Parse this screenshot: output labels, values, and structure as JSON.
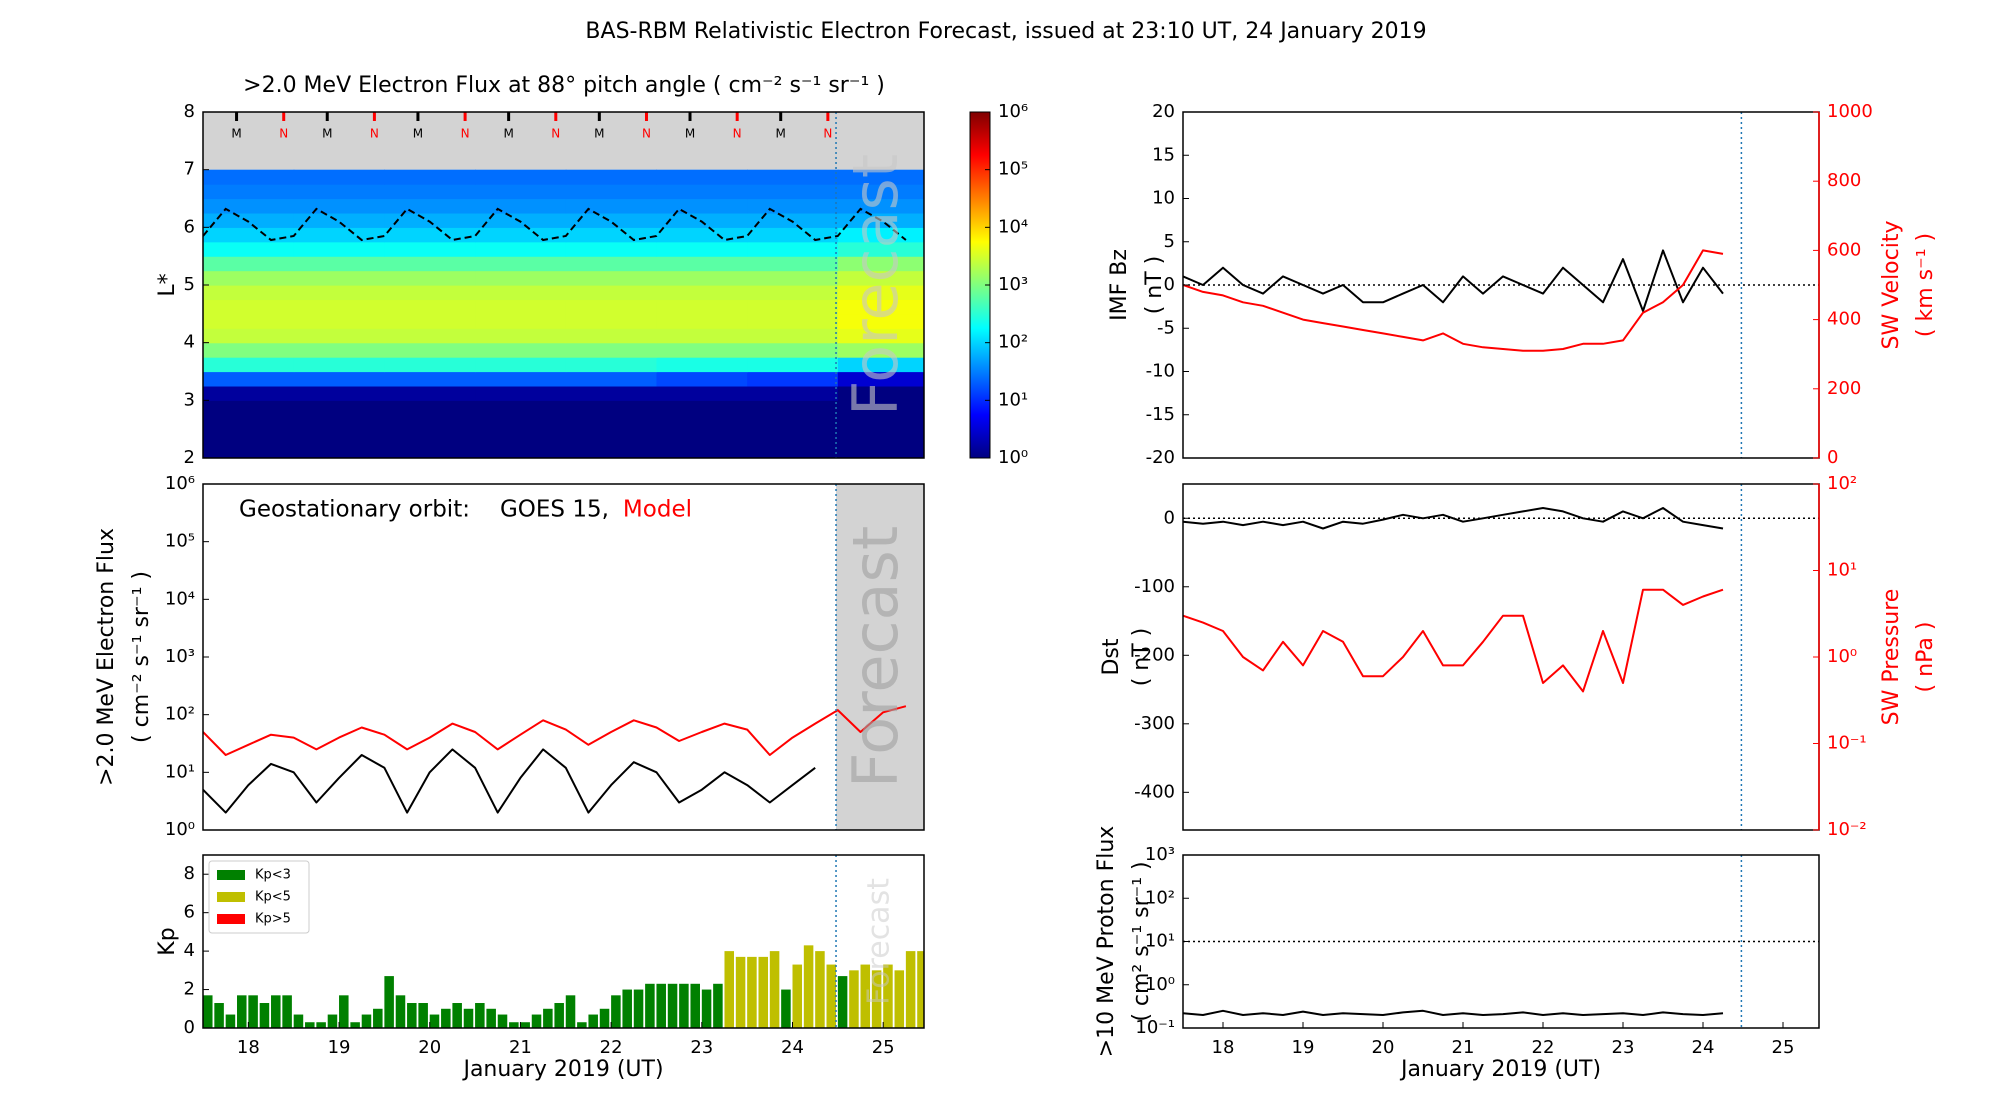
{
  "title": "BAS-RBM Relativistic Electron Forecast, issued at 23:10 UT, 24 January 2019",
  "forecast_start": 24.48,
  "chart_data": [
    {
      "type": "heatmap",
      "title": ">2.0 MeV Electron Flux at 88° pitch angle ( cm⁻² s⁻¹ sr⁻¹ )",
      "ylabel": "L*",
      "xlim": [
        17.5,
        25.45
      ],
      "ylim": [
        2,
        8
      ],
      "yticks": [
        2,
        3,
        4,
        5,
        6,
        7,
        8
      ],
      "xbins": [
        17.5,
        18.5,
        19.5,
        20.5,
        21.5,
        22.5,
        23.5,
        24.5,
        25.45
      ],
      "ybins": [
        2,
        2.25,
        2.5,
        2.75,
        3,
        3.25,
        3.5,
        3.75,
        4,
        4.25,
        4.5,
        4.75,
        5,
        5.25,
        5.5,
        5.75,
        6,
        6.25,
        6.5,
        6.75,
        7
      ],
      "z": [
        [
          1,
          1,
          1,
          1,
          1,
          1,
          1,
          1
        ],
        [
          1,
          1,
          1,
          1,
          1,
          1,
          1,
          1
        ],
        [
          1,
          1,
          1,
          1,
          1,
          1,
          1,
          1
        ],
        [
          1,
          1,
          1,
          1,
          1,
          1,
          1,
          1
        ],
        [
          1.5,
          1.5,
          1.5,
          1.5,
          1.5,
          1.5,
          1.5,
          1
        ],
        [
          20,
          20,
          20,
          20,
          20,
          15,
          12,
          3
        ],
        [
          300,
          300,
          300,
          300,
          300,
          250,
          250,
          100
        ],
        [
          1000,
          1000,
          1000,
          1000,
          1000,
          1000,
          1000,
          1500
        ],
        [
          2500,
          2500,
          2500,
          2500,
          2500,
          2500,
          2500,
          4000
        ],
        [
          3000,
          3000,
          3000,
          3000,
          3000,
          3000,
          3000,
          5000
        ],
        [
          3000,
          3000,
          3000,
          3000,
          3000,
          3000,
          3000,
          5000
        ],
        [
          2500,
          2500,
          2500,
          2500,
          2500,
          2500,
          2500,
          4000
        ],
        [
          1500,
          1500,
          1500,
          1500,
          1500,
          1500,
          1500,
          2500
        ],
        [
          600,
          600,
          600,
          600,
          600,
          600,
          600,
          1200
        ],
        [
          200,
          200,
          200,
          200,
          200,
          200,
          200,
          300
        ],
        [
          100,
          100,
          100,
          100,
          100,
          100,
          100,
          150
        ],
        [
          60,
          60,
          60,
          60,
          60,
          60,
          60,
          60
        ],
        [
          40,
          40,
          40,
          40,
          40,
          40,
          40,
          40
        ],
        [
          30,
          30,
          30,
          30,
          30,
          30,
          30,
          30
        ],
        [
          25,
          25,
          25,
          25,
          25,
          25,
          25,
          25
        ]
      ],
      "colorbar": {
        "lim": [
          1,
          1000000
        ],
        "log": true,
        "ticks": [
          {
            "value": 1,
            "label": "10⁰"
          },
          {
            "value": 10,
            "label": "10¹"
          },
          {
            "value": 100,
            "label": "10²"
          },
          {
            "value": 1000,
            "label": "10³"
          },
          {
            "value": 10000,
            "label": "10⁴"
          },
          {
            "value": 100000,
            "label": "10⁵"
          },
          {
            "value": 1000000,
            "label": "10⁶"
          }
        ]
      },
      "line": {
        "color": "#000000",
        "dashed": true,
        "x": [
          17.5,
          17.75,
          18,
          18.25,
          18.5,
          18.75,
          19,
          19.25,
          19.5,
          19.75,
          20,
          20.25,
          20.5,
          20.75,
          21,
          21.25,
          21.5,
          21.75,
          22,
          22.25,
          22.5,
          22.75,
          23,
          23.25,
          23.5,
          23.75,
          24,
          24.25,
          24.5,
          24.75,
          25,
          25.25
        ],
        "values": [
          5.85,
          6.32,
          6.1,
          5.78,
          5.85,
          6.32,
          6.1,
          5.78,
          5.85,
          6.32,
          6.1,
          5.78,
          5.85,
          6.32,
          6.1,
          5.78,
          5.85,
          6.32,
          6.1,
          5.78,
          5.85,
          6.32,
          6.1,
          5.78,
          5.85,
          6.32,
          6.1,
          5.78,
          5.85,
          6.32,
          6.1,
          5.78
        ]
      },
      "markers": [
        {
          "x": 17.87,
          "label": "M"
        },
        {
          "x": 18.39,
          "label": "N"
        },
        {
          "x": 18.87,
          "label": "M"
        },
        {
          "x": 19.39,
          "label": "N"
        },
        {
          "x": 19.87,
          "label": "M"
        },
        {
          "x": 20.39,
          "label": "N"
        },
        {
          "x": 20.87,
          "label": "M"
        },
        {
          "x": 21.39,
          "label": "N"
        },
        {
          "x": 21.87,
          "label": "M"
        },
        {
          "x": 22.39,
          "label": "N"
        },
        {
          "x": 22.87,
          "label": "M"
        },
        {
          "x": 23.39,
          "label": "N"
        },
        {
          "x": 23.87,
          "label": "M"
        },
        {
          "x": 24.39,
          "label": "N"
        }
      ],
      "marker_colors": {
        "M": "#000000",
        "N": "#ff0000"
      },
      "mask_color": "#d3d3d3",
      "watermark": "Forecast"
    },
    {
      "type": "line",
      "log": true,
      "ylabel": [
        ">2.0 MeV Electron Flux",
        "( cm⁻² s⁻¹ sr⁻¹ )"
      ],
      "xlim": [
        17.5,
        25.45
      ],
      "ylim": [
        1,
        1000000
      ],
      "yticks": [
        {
          "value": 1,
          "label": "10⁰"
        },
        {
          "value": 10,
          "label": "10¹"
        },
        {
          "value": 100,
          "label": "10²"
        },
        {
          "value": 1000,
          "label": "10³"
        },
        {
          "value": 10000,
          "label": "10⁴"
        },
        {
          "value": 100000,
          "label": "10⁵"
        },
        {
          "value": 1000000,
          "label": "10⁶"
        }
      ],
      "annotation": "Geostationary orbit:",
      "x": [
        17.5,
        17.75,
        18,
        18.25,
        18.5,
        18.75,
        19,
        19.25,
        19.5,
        19.75,
        20,
        20.25,
        20.5,
        20.75,
        21,
        21.25,
        21.5,
        21.75,
        22,
        22.25,
        22.5,
        22.75,
        23,
        23.25,
        23.5,
        23.75,
        24,
        24.25,
        24.5,
        24.75,
        25,
        25.25
      ],
      "series": [
        {
          "name": "GOES 15,",
          "color": "#000000",
          "values": [
            5,
            2,
            6,
            14,
            10,
            3,
            8,
            20,
            12,
            2,
            10,
            25,
            12,
            2,
            8,
            25,
            12,
            2,
            6,
            15,
            10,
            3,
            5,
            10,
            6,
            3,
            6,
            12,
            null,
            null,
            null,
            null
          ]
        },
        {
          "name": "Model",
          "color": "#ff0000",
          "values": [
            50,
            20,
            30,
            45,
            40,
            25,
            40,
            60,
            45,
            25,
            40,
            70,
            50,
            25,
            45,
            80,
            55,
            30,
            50,
            80,
            60,
            35,
            50,
            70,
            55,
            20,
            40,
            70,
            120,
            50,
            110,
            140
          ]
        }
      ],
      "forecast_shade": "#d3d3d3",
      "watermark": "Forecast"
    },
    {
      "type": "bar",
      "ylabel": "Kp",
      "xlabel": "January 2019 (UT)",
      "xlim": [
        17.5,
        25.45
      ],
      "ylim": [
        0,
        9
      ],
      "yticks": [
        0,
        2,
        4,
        6,
        8
      ],
      "xticks": [
        18,
        19,
        20,
        21,
        22,
        23,
        24,
        25
      ],
      "x": [
        17.5,
        17.625,
        17.75,
        17.875,
        18,
        18.125,
        18.25,
        18.375,
        18.5,
        18.625,
        18.75,
        18.875,
        19,
        19.125,
        19.25,
        19.375,
        19.5,
        19.625,
        19.75,
        19.875,
        20,
        20.125,
        20.25,
        20.375,
        20.5,
        20.625,
        20.75,
        20.875,
        21,
        21.125,
        21.25,
        21.375,
        21.5,
        21.625,
        21.75,
        21.875,
        22,
        22.125,
        22.25,
        22.375,
        22.5,
        22.625,
        22.75,
        22.875,
        23,
        23.125,
        23.25,
        23.375,
        23.5,
        23.625,
        23.75,
        23.875,
        24,
        24.125,
        24.25,
        24.375,
        24.5,
        24.625,
        24.75,
        24.875,
        25,
        25.125,
        25.25,
        25.375
      ],
      "values": [
        1.7,
        1.3,
        0.7,
        1.7,
        1.7,
        1.3,
        1.7,
        1.7,
        0.7,
        0.3,
        0.3,
        0.7,
        1.7,
        0.3,
        0.7,
        1,
        2.7,
        1.7,
        1.3,
        1.3,
        0.7,
        1,
        1.3,
        1,
        1.3,
        1,
        0.7,
        0.3,
        0.3,
        0.7,
        1,
        1.3,
        1.7,
        0.3,
        0.7,
        1,
        1.7,
        2,
        2,
        2.3,
        2.3,
        2.3,
        2.3,
        2.3,
        2,
        2.3,
        4,
        3.7,
        3.7,
        3.7,
        4,
        2,
        3.3,
        4.3,
        4,
        3.3,
        2.7,
        3,
        3.3,
        3,
        3.3,
        3,
        4,
        4
      ],
      "legend": [
        {
          "name": "Kp<3",
          "color": "#008000"
        },
        {
          "name": "Kp<5",
          "color": "#bfbf00"
        },
        {
          "name": "Kp>5",
          "color": "#ff0000"
        }
      ],
      "legend_loc": "upper left",
      "watermark": "Forecast"
    },
    {
      "type": "line",
      "ylabel": [
        "IMF Bz",
        "( nT )"
      ],
      "y2label": [
        "SW Velocity",
        "( km s⁻¹ )"
      ],
      "xlim": [
        17.5,
        25.45
      ],
      "ylim": [
        -20,
        20
      ],
      "yticks": [
        -20,
        -15,
        -10,
        -5,
        0,
        5,
        10,
        15,
        20
      ],
      "y2lim": [
        0,
        1000
      ],
      "y2ticks": [
        0,
        200,
        400,
        600,
        800,
        1000
      ],
      "y2color": "#ff0000",
      "hline": 0,
      "x": [
        17.5,
        17.75,
        18,
        18.25,
        18.5,
        18.75,
        19,
        19.25,
        19.5,
        19.75,
        20,
        20.25,
        20.5,
        20.75,
        21,
        21.25,
        21.5,
        21.75,
        22,
        22.25,
        22.5,
        22.75,
        23,
        23.25,
        23.5,
        23.75,
        24,
        24.25,
        24.5,
        24.75,
        25,
        25.25
      ],
      "series": [
        {
          "color": "#000000",
          "values": [
            1,
            0,
            2,
            0,
            -1,
            1,
            0,
            -1,
            0,
            -2,
            -2,
            -1,
            0,
            -2,
            1,
            -1,
            1,
            0,
            -1,
            2,
            0,
            -2,
            3,
            -3,
            4,
            -2,
            2,
            -1,
            null,
            null,
            null,
            null
          ]
        },
        {
          "color": "#ff0000",
          "axis": "y2",
          "values": [
            500,
            480,
            470,
            450,
            440,
            420,
            400,
            390,
            380,
            370,
            360,
            350,
            340,
            360,
            330,
            320,
            315,
            310,
            310,
            315,
            330,
            330,
            340,
            420,
            450,
            500,
            600,
            590,
            null,
            null,
            null,
            null
          ]
        }
      ]
    },
    {
      "type": "line",
      "ylabel": [
        "Dst",
        "( nT )"
      ],
      "y2label": [
        "SW Pressure",
        "( nPa )"
      ],
      "xlim": [
        17.5,
        25.45
      ],
      "ylim": [
        -455,
        50
      ],
      "yticks": [
        -400,
        -300,
        -200,
        -100,
        0
      ],
      "y2lim": [
        0.01,
        100
      ],
      "y2log": true,
      "y2color": "#ff0000",
      "y2ticks": [
        {
          "value": 0.01,
          "label": "10⁻²"
        },
        {
          "value": 0.1,
          "label": "10⁻¹"
        },
        {
          "value": 1,
          "label": "10⁰"
        },
        {
          "value": 10,
          "label": "10¹"
        },
        {
          "value": 100,
          "label": "10²"
        }
      ],
      "hline": 0,
      "x": [
        17.5,
        17.75,
        18,
        18.25,
        18.5,
        18.75,
        19,
        19.25,
        19.5,
        19.75,
        20,
        20.25,
        20.5,
        20.75,
        21,
        21.25,
        21.5,
        21.75,
        22,
        22.25,
        22.5,
        22.75,
        23,
        23.25,
        23.5,
        23.75,
        24,
        24.25,
        24.5,
        24.75,
        25,
        25.25
      ],
      "series": [
        {
          "color": "#000000",
          "values": [
            -5,
            -8,
            -5,
            -10,
            -5,
            -10,
            -5,
            -15,
            -5,
            -8,
            -2,
            5,
            0,
            5,
            -5,
            0,
            5,
            10,
            15,
            10,
            0,
            -5,
            10,
            0,
            15,
            -5,
            -10,
            -15,
            null,
            null,
            null,
            null
          ]
        },
        {
          "color": "#ff0000",
          "axis": "y2",
          "values": [
            3,
            2.5,
            2,
            1,
            0.7,
            1.5,
            0.8,
            2,
            1.5,
            0.6,
            0.6,
            1,
            2,
            0.8,
            0.8,
            1.5,
            3,
            3,
            0.5,
            0.8,
            0.4,
            2,
            0.5,
            6,
            6,
            4,
            5,
            6,
            null,
            null,
            null,
            null
          ]
        }
      ]
    },
    {
      "type": "line",
      "log": true,
      "ylabel": [
        ">10 MeV Proton Flux",
        "( cm² s⁻¹ sr⁻¹ )"
      ],
      "xlabel": "January 2019 (UT)",
      "xlim": [
        17.5,
        25.45
      ],
      "ylim": [
        0.1,
        1000
      ],
      "yticks": [
        {
          "value": 0.1,
          "label": "10⁻¹"
        },
        {
          "value": 1,
          "label": "10⁰"
        },
        {
          "value": 10,
          "label": "10¹"
        },
        {
          "value": 100,
          "label": "10²"
        },
        {
          "value": 1000,
          "label": "10³"
        }
      ],
      "xticks": [
        18,
        19,
        20,
        21,
        22,
        23,
        24,
        25
      ],
      "hline": 10,
      "x": [
        17.5,
        17.75,
        18,
        18.25,
        18.5,
        18.75,
        19,
        19.25,
        19.5,
        19.75,
        20,
        20.25,
        20.5,
        20.75,
        21,
        21.25,
        21.5,
        21.75,
        22,
        22.25,
        22.5,
        22.75,
        23,
        23.25,
        23.5,
        23.75,
        24,
        24.25,
        24.5,
        24.75,
        25,
        25.25
      ],
      "series": [
        {
          "color": "#000000",
          "values": [
            0.22,
            0.2,
            0.25,
            0.2,
            0.22,
            0.2,
            0.24,
            0.2,
            0.22,
            0.21,
            0.2,
            0.23,
            0.25,
            0.2,
            0.22,
            0.2,
            0.21,
            0.23,
            0.2,
            0.22,
            0.2,
            0.21,
            0.22,
            0.2,
            0.23,
            0.21,
            0.2,
            0.22,
            null,
            null,
            null,
            null
          ]
        }
      ]
    }
  ]
}
